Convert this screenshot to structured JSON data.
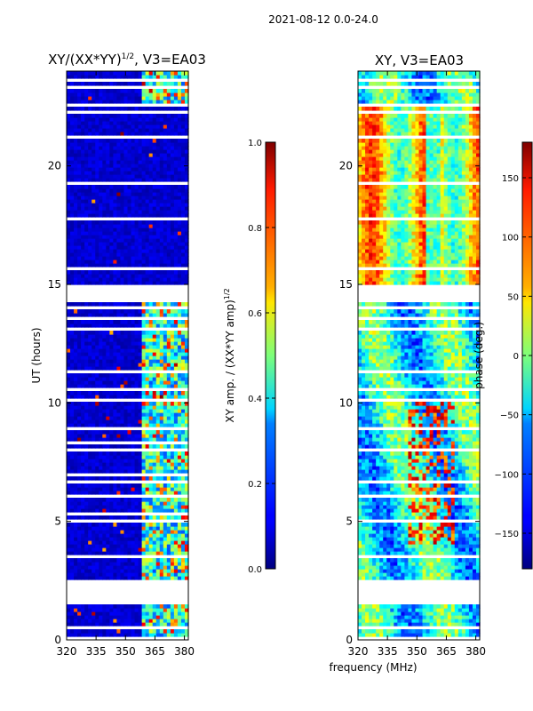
{
  "suptitle": "2021-08-12 0.0-24.0",
  "chart_data": [
    {
      "type": "heatmap",
      "id": "amp",
      "title_main": "XY/(XX*YY)",
      "title_exp": "1/2",
      "title_tail": ", V3=EA03",
      "xlabel": "",
      "ylabel": "UT (hours)",
      "xlim": [
        320,
        382
      ],
      "ylim": [
        0,
        24
      ],
      "xticks": [
        320,
        335,
        350,
        365,
        380
      ],
      "yticks": [
        0,
        5,
        10,
        15,
        20
      ],
      "colorbar": {
        "label_main": "XY amp. / (XX*YY amp)",
        "label_exp": "1/2",
        "range": [
          0.0,
          1.0
        ],
        "ticks": [
          "0.0",
          "0.2",
          "0.4",
          "0.6",
          "0.8",
          "1.0"
        ],
        "tick_values": [
          0.0,
          0.2,
          0.4,
          0.6,
          0.8,
          1.0
        ],
        "colormap": "jet"
      },
      "flagged_hours": [
        [
          0.0,
          0.1
        ],
        [
          0.45,
          0.55
        ],
        [
          1.45,
          1.6
        ],
        [
          2.3,
          2.5
        ],
        [
          2.5,
          2.5
        ],
        [
          3.1,
          3.2
        ],
        [
          3.45,
          3.55
        ],
        [
          4.0,
          4.05
        ],
        [
          4.6,
          4.7
        ],
        [
          5.0,
          5.1
        ],
        [
          5.3,
          5.35
        ],
        [
          6.0,
          6.1
        ],
        [
          6.6,
          6.7
        ],
        [
          6.95,
          7.0
        ],
        [
          7.5,
          7.55
        ],
        [
          8.0,
          8.05
        ],
        [
          8.3,
          8.35
        ],
        [
          8.85,
          8.95
        ],
        [
          9.3,
          9.35
        ],
        [
          9.7,
          9.75
        ],
        [
          10.1,
          10.15
        ],
        [
          10.3,
          10.35
        ],
        [
          10.55,
          10.6
        ],
        [
          11.3,
          11.35
        ],
        [
          11.8,
          11.85
        ],
        [
          12.45,
          12.5
        ],
        [
          12.75,
          12.8
        ],
        [
          13.1,
          13.15
        ],
        [
          13.55,
          13.6
        ],
        [
          14.0,
          14.05
        ],
        [
          14.3,
          14.95
        ],
        [
          15.65,
          15.75
        ],
        [
          16.0,
          16.05
        ],
        [
          16.5,
          16.55
        ],
        [
          17.1,
          17.15
        ],
        [
          17.75,
          17.85
        ],
        [
          18.6,
          18.65
        ],
        [
          18.9,
          18.95
        ],
        [
          19.25,
          19.3
        ],
        [
          19.65,
          19.7
        ],
        [
          20.1,
          20.15
        ],
        [
          20.5,
          20.55
        ],
        [
          21.15,
          21.25
        ],
        [
          21.9,
          21.95
        ],
        [
          22.2,
          22.35
        ],
        [
          22.5,
          22.6
        ],
        [
          22.75,
          22.8
        ],
        [
          23.3,
          23.35
        ],
        [
          23.6,
          23.7
        ]
      ],
      "big_gap_hours": [
        1.6,
        2.3
      ]
    },
    {
      "type": "heatmap",
      "id": "phase",
      "title_main": "XY, V3=EA03",
      "xlabel": "frequency (MHz)",
      "ylabel": "",
      "xlim": [
        320,
        382
      ],
      "ylim": [
        0,
        24
      ],
      "xticks": [
        320,
        335,
        350,
        365,
        380
      ],
      "yticks": [
        0,
        5,
        10,
        15,
        20
      ],
      "colorbar": {
        "label_main": "phase (deg.)",
        "range": [
          -180,
          180
        ],
        "ticks": [
          "−150",
          "−100",
          "−50",
          "0",
          "50",
          "100",
          "150"
        ],
        "tick_values": [
          -150,
          -100,
          -50,
          0,
          50,
          100,
          150
        ],
        "colormap": "jet"
      },
      "flagged_hours": [
        [
          0.0,
          0.1
        ],
        [
          0.45,
          0.55
        ],
        [
          1.45,
          1.6
        ],
        [
          2.3,
          2.5
        ],
        [
          3.1,
          3.2
        ],
        [
          3.45,
          3.55
        ],
        [
          4.0,
          4.05
        ],
        [
          4.6,
          4.7
        ],
        [
          5.0,
          5.1
        ],
        [
          6.0,
          6.1
        ],
        [
          6.6,
          6.7
        ],
        [
          7.5,
          7.55
        ],
        [
          8.0,
          8.05
        ],
        [
          8.85,
          8.95
        ],
        [
          9.3,
          9.35
        ],
        [
          9.7,
          9.75
        ],
        [
          10.1,
          10.15
        ],
        [
          10.55,
          10.6
        ],
        [
          11.3,
          11.35
        ],
        [
          11.8,
          11.85
        ],
        [
          12.45,
          12.5
        ],
        [
          13.1,
          13.15
        ],
        [
          13.55,
          13.6
        ],
        [
          14.0,
          14.05
        ],
        [
          14.3,
          14.95
        ],
        [
          15.65,
          15.75
        ],
        [
          16.0,
          16.05
        ],
        [
          16.5,
          16.55
        ],
        [
          17.1,
          17.15
        ],
        [
          17.75,
          17.85
        ],
        [
          18.6,
          18.65
        ],
        [
          18.9,
          18.95
        ],
        [
          19.25,
          19.3
        ],
        [
          19.65,
          19.7
        ],
        [
          20.1,
          20.15
        ],
        [
          20.5,
          20.55
        ],
        [
          21.15,
          21.25
        ],
        [
          21.9,
          21.95
        ],
        [
          22.2,
          22.35
        ],
        [
          22.5,
          22.6
        ],
        [
          23.3,
          23.35
        ],
        [
          23.6,
          23.7
        ]
      ],
      "big_gap_hours": [
        1.6,
        2.3
      ]
    }
  ]
}
